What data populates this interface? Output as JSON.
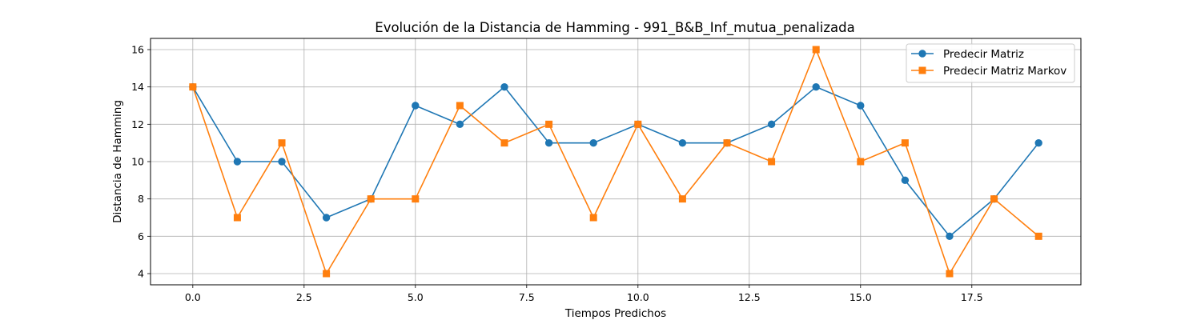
{
  "chart_data": {
    "type": "line",
    "title": "Evolución de la Distancia de Hamming - 991_B&B_Inf_mutua_penalizada",
    "xlabel": "Tiempos Predichos",
    "ylabel": "Distancia de Hamming",
    "xlim": [
      -0.95,
      19.95
    ],
    "ylim": [
      3.4,
      16.6
    ],
    "xticks": [
      0.0,
      2.5,
      5.0,
      7.5,
      10.0,
      12.5,
      15.0,
      17.5
    ],
    "xtick_labels": [
      "0.0",
      "2.5",
      "5.0",
      "7.5",
      "10.0",
      "12.5",
      "15.0",
      "17.5"
    ],
    "yticks": [
      4,
      6,
      8,
      10,
      12,
      14,
      16
    ],
    "ytick_labels": [
      "4",
      "6",
      "8",
      "10",
      "12",
      "14",
      "16"
    ],
    "grid": true,
    "legend_position": "top-right",
    "x": [
      0,
      1,
      2,
      3,
      4,
      5,
      6,
      7,
      8,
      9,
      10,
      11,
      12,
      13,
      14,
      15,
      16,
      17,
      18,
      19
    ],
    "series": [
      {
        "name": "Predecir Matriz",
        "color": "#1f77b4",
        "marker": "circle",
        "values": [
          14,
          10,
          10,
          7,
          8,
          13,
          12,
          14,
          11,
          11,
          12,
          11,
          11,
          12,
          14,
          13,
          9,
          6,
          8,
          11
        ]
      },
      {
        "name": "Predecir Matriz Markov",
        "color": "#ff7f0e",
        "marker": "square",
        "values": [
          14,
          7,
          11,
          4,
          8,
          8,
          13,
          11,
          12,
          7,
          12,
          8,
          11,
          10,
          16,
          10,
          11,
          4,
          8,
          6
        ]
      }
    ]
  }
}
